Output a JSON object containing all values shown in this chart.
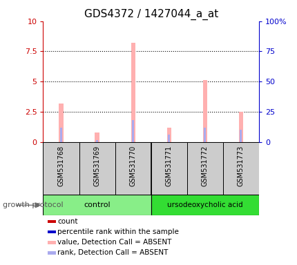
{
  "title": "GDS4372 / 1427044_a_at",
  "samples": [
    "GSM531768",
    "GSM531769",
    "GSM531770",
    "GSM531771",
    "GSM531772",
    "GSM531773"
  ],
  "pink_bars": [
    3.2,
    0.8,
    8.2,
    1.2,
    5.1,
    2.5
  ],
  "blue_bars": [
    1.2,
    0.15,
    1.8,
    0.6,
    1.2,
    1.0
  ],
  "left_ylim": [
    0,
    10
  ],
  "right_ylim": [
    0,
    100
  ],
  "left_yticks": [
    0,
    2.5,
    5,
    7.5,
    10
  ],
  "right_yticks": [
    0,
    25,
    50,
    75,
    100
  ],
  "left_yticklabels": [
    "0",
    "2.5",
    "5",
    "7.5",
    "10"
  ],
  "right_yticklabels": [
    "0",
    "25",
    "50",
    "75",
    "100%"
  ],
  "left_ycolor": "#cc0000",
  "right_ycolor": "#0000cc",
  "pink_color": "#ffb0b0",
  "blue_color": "#aaaaee",
  "group_control_color": "#88ee88",
  "group_treatment_color": "#33dd33",
  "sample_bg_color": "#cccccc",
  "legend_items": [
    {
      "color": "#cc0000",
      "label": "count"
    },
    {
      "color": "#0000cc",
      "label": "percentile rank within the sample"
    },
    {
      "color": "#ffb0b0",
      "label": "value, Detection Call = ABSENT"
    },
    {
      "color": "#aaaaee",
      "label": "rank, Detection Call = ABSENT"
    }
  ],
  "growth_protocol_label": "growth protocol",
  "pink_bar_width": 0.12,
  "blue_bar_width": 0.06
}
